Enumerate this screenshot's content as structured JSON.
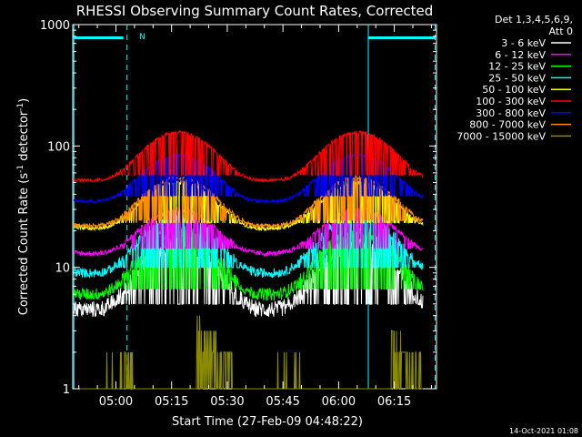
{
  "chart_data": {
    "type": "line",
    "title": "RHESSI Observing Summary Count Rates, Corrected",
    "ylabel_main": "Corrected Count Rate (s",
    "ylabel_sup1": "-1",
    "ylabel_mid": " detector",
    "ylabel_sup2": "-1",
    "ylabel_end": ")",
    "xlabel": "Start Time (27-Feb-09 04:48:22)",
    "timestamp": "14-Oct-2021 01:08",
    "y_scale": "log",
    "ylim": [
      1,
      1000
    ],
    "y_ticks": [
      {
        "value": 1,
        "label": "1"
      },
      {
        "value": 10,
        "label": "10"
      },
      {
        "value": 100,
        "label": "100"
      },
      {
        "value": 1000,
        "label": "1000"
      }
    ],
    "xlim": [
      "04:48:22",
      "06:26:22"
    ],
    "x_ticks": [
      "05:00",
      "05:15",
      "05:30",
      "05:45",
      "06:00",
      "06:15"
    ],
    "legend_header": [
      "Det 1,3,4,5,6,9,",
      "Att 0"
    ],
    "legend_position": "right",
    "series": [
      {
        "name": "3 - 6 keV",
        "color": "#ffffff",
        "base": 4.5,
        "peak": 16,
        "noise": 0.16
      },
      {
        "name": "6 - 12 keV",
        "color": "#ff00ff",
        "base": 13,
        "peak": 30,
        "noise": 0.05
      },
      {
        "name": "12 - 25 keV",
        "color": "#00ff00",
        "base": 6,
        "peak": 20,
        "noise": 0.12
      },
      {
        "name": "25 - 50 keV",
        "color": "#00ffff",
        "base": 9,
        "peak": 27,
        "noise": 0.09
      },
      {
        "name": "50 - 100 keV",
        "color": "#ffff00",
        "base": 21,
        "peak": 50,
        "noise": 0.04
      },
      {
        "name": "100 - 300 keV",
        "color": "#ff0000",
        "base": 52,
        "peak": 130,
        "noise": 0.03
      },
      {
        "name": "300 - 800 keV",
        "color": "#0000ff",
        "base": 35,
        "peak": 85,
        "noise": 0.03
      },
      {
        "name": "800 - 7000 keV",
        "color": "#ff8c00",
        "base": 22,
        "peak": 55,
        "noise": 0.04
      },
      {
        "name": "7000 - 15000 keV",
        "color": "#8b8b00",
        "base": 1,
        "peak": 3.6,
        "noise": 0.3
      }
    ],
    "annotations": {
      "night_bar_color": "#00ffff",
      "night_intervals": [
        [
          "04:48:22",
          "05:02:00"
        ],
        [
          "06:08:00",
          "06:26:00"
        ]
      ],
      "saa_marker_label": "N",
      "dashed_times": [
        "05:03:00",
        "06:26:00"
      ],
      "solid_times": [
        "04:48:40",
        "06:08:00"
      ]
    }
  }
}
